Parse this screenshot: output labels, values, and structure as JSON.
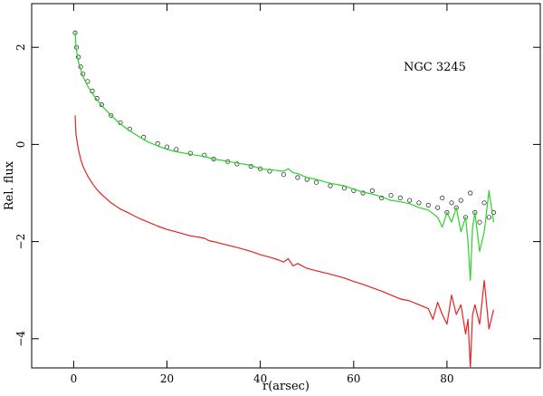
{
  "chart_data": {
    "type": "line",
    "title": "",
    "annotation": "NGC 3245",
    "xlabel": "r(arsec)",
    "ylabel": "Rel. flux",
    "xlim": [
      -9,
      100
    ],
    "ylim": [
      -4.6,
      2.9
    ],
    "x_ticks": [
      0,
      20,
      40,
      60,
      80
    ],
    "y_ticks": [
      2,
      0,
      -2,
      -4
    ],
    "x_tick_labels": [
      "0",
      "20",
      "40",
      "60",
      "80"
    ],
    "y_tick_labels": [
      "2",
      "0",
      "−2",
      "−4"
    ],
    "grid": false,
    "legend": "none",
    "series": [
      {
        "style": "points",
        "color": "#333333",
        "x": [
          0.3,
          0.6,
          1,
          1.5,
          2,
          3,
          4,
          5,
          6,
          8,
          10,
          12,
          15,
          18,
          20,
          22,
          25,
          28,
          30,
          33,
          35,
          38,
          40,
          42,
          45,
          48,
          50,
          52,
          55,
          58,
          60,
          62,
          64,
          66,
          68,
          70,
          72,
          74,
          76,
          78,
          79,
          80,
          81,
          82,
          83,
          84,
          85,
          86,
          87,
          88,
          89,
          90
        ],
        "y": [
          2.3,
          2.0,
          1.8,
          1.6,
          1.45,
          1.3,
          1.1,
          0.95,
          0.82,
          0.6,
          0.45,
          0.32,
          0.15,
          0.02,
          -0.05,
          -0.1,
          -0.18,
          -0.22,
          -0.3,
          -0.35,
          -0.4,
          -0.45,
          -0.5,
          -0.55,
          -0.62,
          -0.68,
          -0.72,
          -0.78,
          -0.85,
          -0.9,
          -0.95,
          -1.0,
          -0.95,
          -1.1,
          -1.05,
          -1.1,
          -1.15,
          -1.2,
          -1.25,
          -1.3,
          -1.1,
          -1.4,
          -1.2,
          -1.3,
          -1.15,
          -1.5,
          -1.0,
          -1.4,
          -1.6,
          -1.2,
          -1.5,
          -1.4
        ]
      },
      {
        "style": "line",
        "color": "#2bd42b",
        "x": [
          0.3,
          0.5,
          1,
          2,
          3,
          4,
          6,
          8,
          10,
          12,
          14,
          16,
          18,
          20,
          22,
          25,
          28,
          30,
          32,
          35,
          38,
          40,
          43,
          45,
          46,
          47,
          48,
          50,
          52,
          55,
          58,
          60,
          62,
          64,
          66,
          68,
          70,
          72,
          74,
          76,
          78,
          79,
          80,
          81,
          82,
          83,
          84,
          84.5,
          85,
          85.5,
          86,
          87,
          88,
          89,
          90
        ],
        "y": [
          2.35,
          2.0,
          1.7,
          1.4,
          1.2,
          1.05,
          0.8,
          0.6,
          0.42,
          0.28,
          0.16,
          0.05,
          -0.03,
          -0.1,
          -0.15,
          -0.2,
          -0.25,
          -0.3,
          -0.33,
          -0.38,
          -0.43,
          -0.5,
          -0.53,
          -0.55,
          -0.5,
          -0.58,
          -0.6,
          -0.68,
          -0.72,
          -0.8,
          -0.85,
          -0.92,
          -0.98,
          -1.02,
          -1.08,
          -1.15,
          -1.18,
          -1.22,
          -1.3,
          -1.35,
          -1.5,
          -1.7,
          -1.4,
          -1.6,
          -1.3,
          -1.8,
          -1.5,
          -2.0,
          -2.8,
          -1.7,
          -1.4,
          -2.2,
          -1.8,
          -0.95,
          -1.6
        ]
      },
      {
        "style": "line",
        "color": "#e52222",
        "x": [
          0.3,
          0.5,
          1,
          1.5,
          2,
          3,
          4,
          5,
          6,
          8,
          10,
          12,
          14,
          16,
          18,
          20,
          22,
          25,
          28,
          29,
          30,
          32,
          35,
          38,
          40,
          42,
          44,
          45,
          46,
          47,
          48,
          50,
          52,
          55,
          58,
          60,
          62,
          64,
          66,
          68,
          70,
          72,
          74,
          76,
          77,
          78,
          79,
          80,
          81,
          82,
          83,
          84,
          84.5,
          85,
          85.5,
          86,
          87,
          88,
          89,
          90
        ],
        "y": [
          0.6,
          0.2,
          -0.1,
          -0.3,
          -0.45,
          -0.65,
          -0.8,
          -0.93,
          -1.03,
          -1.2,
          -1.33,
          -1.42,
          -1.52,
          -1.6,
          -1.68,
          -1.75,
          -1.8,
          -1.88,
          -1.93,
          -1.98,
          -2.0,
          -2.05,
          -2.12,
          -2.2,
          -2.27,
          -2.32,
          -2.38,
          -2.42,
          -2.35,
          -2.5,
          -2.45,
          -2.55,
          -2.6,
          -2.67,
          -2.75,
          -2.82,
          -2.88,
          -2.95,
          -3.02,
          -3.1,
          -3.18,
          -3.22,
          -3.3,
          -3.38,
          -3.6,
          -3.25,
          -3.5,
          -3.7,
          -3.1,
          -3.5,
          -3.3,
          -3.9,
          -3.6,
          -4.6,
          -3.5,
          -3.3,
          -3.7,
          -2.8,
          -3.8,
          -3.4
        ]
      }
    ]
  }
}
